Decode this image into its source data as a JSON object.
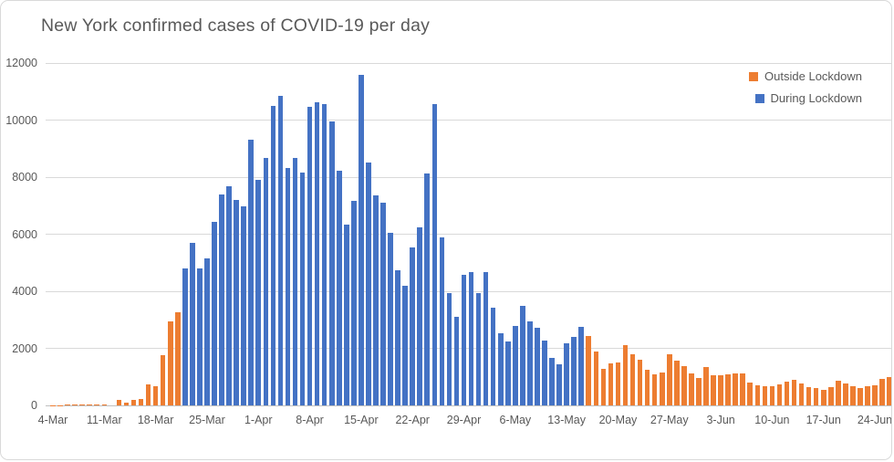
{
  "window": {
    "background": "#FFFFFF",
    "border_color": "#D9D9D9"
  },
  "styles": {
    "text_color": "#595959",
    "gridline_color": "#D9D9D9",
    "axis_line_color": "#BFBFBF",
    "outside_lockdown_color": "#ED7D31",
    "during_lockdown_color": "#4472C4"
  },
  "chart_data": {
    "type": "bar",
    "title": "New York confirmed cases of COVID-19 per day",
    "xlabel": "",
    "ylabel": "",
    "ylim": [
      0,
      12000
    ],
    "y_tick_step": 2000,
    "y_tick_labels": [
      "0",
      "2000",
      "4000",
      "6000",
      "8000",
      "10000",
      "12000"
    ],
    "x_tick_labels": [
      "4-Mar",
      "11-Mar",
      "18-Mar",
      "25-Mar",
      "1-Apr",
      "8-Apr",
      "15-Apr",
      "22-Apr",
      "29-Apr",
      "6-May",
      "13-May",
      "20-May",
      "27-May",
      "3-Jun",
      "10-Jun",
      "17-Jun",
      "24-Jun"
    ],
    "x_tick_every_days": 7,
    "grid": true,
    "legend": {
      "position": "top-right",
      "entries": [
        {
          "label": "Outside Lockdown",
          "color": "#ED7D31"
        },
        {
          "label": "During Lockdown",
          "color": "#4472C4"
        }
      ]
    },
    "lockdown_start_index": 18,
    "lockdown_end_index": 72,
    "dates": [
      "4-Mar",
      "5-Mar",
      "6-Mar",
      "7-Mar",
      "8-Mar",
      "9-Mar",
      "10-Mar",
      "11-Mar",
      "12-Mar",
      "13-Mar",
      "14-Mar",
      "15-Mar",
      "16-Mar",
      "17-Mar",
      "18-Mar",
      "19-Mar",
      "20-Mar",
      "21-Mar",
      "22-Mar",
      "23-Mar",
      "24-Mar",
      "25-Mar",
      "26-Mar",
      "27-Mar",
      "28-Mar",
      "29-Mar",
      "30-Mar",
      "31-Mar",
      "1-Apr",
      "2-Apr",
      "3-Apr",
      "4-Apr",
      "5-Apr",
      "6-Apr",
      "7-Apr",
      "8-Apr",
      "9-Apr",
      "10-Apr",
      "11-Apr",
      "12-Apr",
      "13-Apr",
      "14-Apr",
      "15-Apr",
      "16-Apr",
      "17-Apr",
      "18-Apr",
      "19-Apr",
      "20-Apr",
      "21-Apr",
      "22-Apr",
      "23-Apr",
      "24-Apr",
      "25-Apr",
      "26-Apr",
      "27-Apr",
      "28-Apr",
      "29-Apr",
      "30-Apr",
      "1-May",
      "2-May",
      "3-May",
      "4-May",
      "5-May",
      "6-May",
      "7-May",
      "8-May",
      "9-May",
      "10-May",
      "11-May",
      "12-May",
      "13-May",
      "14-May",
      "15-May",
      "16-May",
      "17-May",
      "18-May",
      "19-May",
      "20-May",
      "21-May",
      "22-May",
      "23-May",
      "24-May",
      "25-May",
      "26-May",
      "27-May",
      "28-May",
      "29-May",
      "30-May",
      "31-May",
      "1-Jun",
      "2-Jun",
      "3-Jun",
      "4-Jun",
      "5-Jun",
      "6-Jun",
      "7-Jun",
      "8-Jun",
      "9-Jun",
      "10-Jun",
      "11-Jun",
      "12-Jun",
      "13-Jun",
      "14-Jun",
      "15-Jun",
      "16-Jun",
      "17-Jun",
      "18-Jun",
      "19-Jun",
      "20-Jun",
      "21-Jun",
      "22-Jun",
      "23-Jun",
      "24-Jun",
      "25-Jun",
      "26-Jun"
    ],
    "values": [
      11,
      11,
      22,
      45,
      17,
      36,
      31,
      43,
      0,
      205,
      103,
      205,
      221,
      750,
      682,
      1770,
      2950,
      3254,
      4812,
      5707,
      4790,
      5146,
      6447,
      7377,
      7683,
      7195,
      6984,
      9298,
      7917,
      8669,
      10482,
      10841,
      8327,
      8658,
      8174,
      10453,
      10621,
      10575,
      9946,
      8236,
      6337,
      7177,
      11571,
      8505,
      7358,
      7090,
      6054,
      4726,
      4178,
      5526,
      6244,
      8130,
      10553,
      5902,
      3951,
      3110,
      4585,
      4681,
      3942,
      4663,
      3438,
      2538,
      2239,
      2786,
      3491,
      2938,
      2715,
      2273,
      1660,
      1430,
      2176,
      2390,
      2762,
      2419,
      1889,
      1270,
      1480,
      1505,
      2100,
      1780,
      1590,
      1250,
      1080,
      1140,
      1800,
      1570,
      1375,
      1110,
      950,
      1360,
      1060,
      1045,
      1090,
      1110,
      1130,
      810,
      705,
      660,
      685,
      725,
      820,
      895,
      755,
      630,
      610,
      550,
      630,
      875,
      770,
      660,
      600,
      685,
      705,
      920,
      1000
    ]
  }
}
